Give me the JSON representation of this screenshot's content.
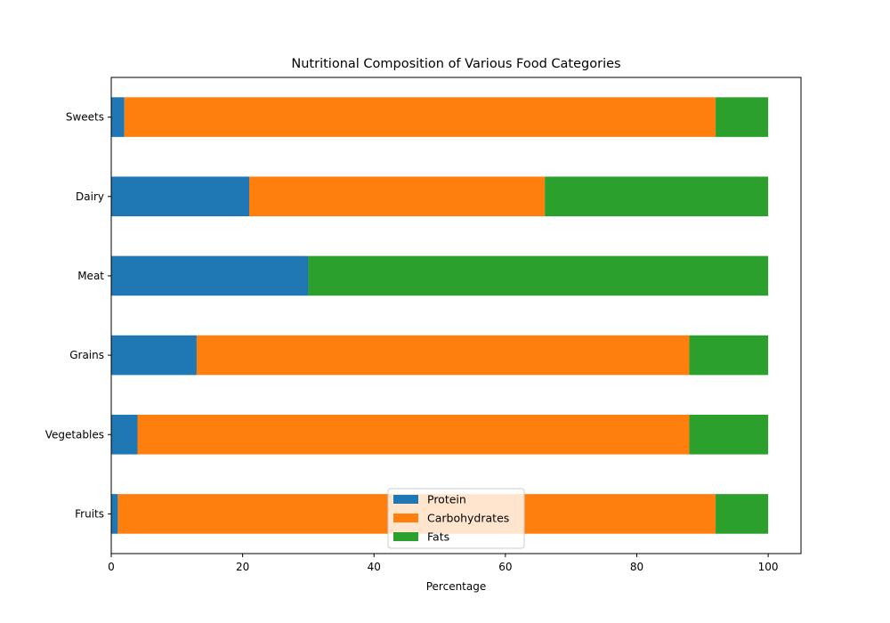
{
  "chart_data": {
    "type": "bar",
    "orientation": "horizontal",
    "stacked": true,
    "title": "Nutritional Composition of Various Food Categories",
    "xlabel": "Percentage",
    "ylabel": "",
    "xlim": [
      0,
      105
    ],
    "x_ticks": [
      0,
      20,
      40,
      60,
      80,
      100
    ],
    "categories": [
      "Fruits",
      "Vegetables",
      "Grains",
      "Meat",
      "Dairy",
      "Sweets"
    ],
    "series": [
      {
        "name": "Protein",
        "color": "#1f77b4",
        "values": [
          1,
          4,
          13,
          30,
          21,
          2
        ]
      },
      {
        "name": "Carbohydrates",
        "color": "#ff7f0e",
        "values": [
          91,
          84,
          75,
          0,
          45,
          90
        ]
      },
      {
        "name": "Fats",
        "color": "#2ca02c",
        "values": [
          8,
          12,
          12,
          70,
          34,
          8
        ]
      }
    ],
    "grid": false,
    "legend_position": "lower center"
  }
}
